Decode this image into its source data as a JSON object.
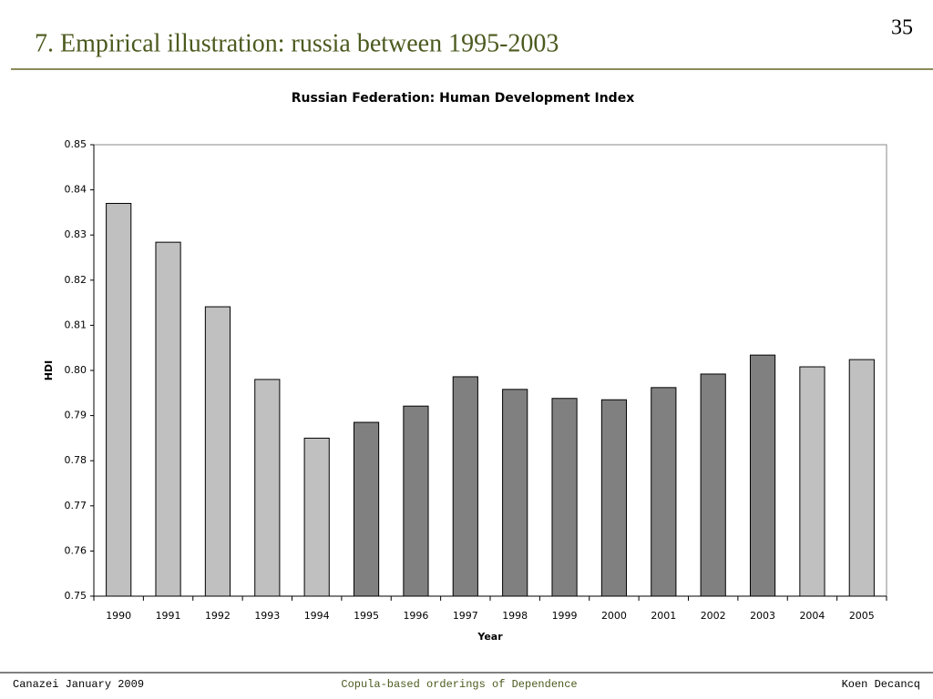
{
  "slide": {
    "title": "7. Empirical illustration: russia between 1995-2003",
    "page_number": "35",
    "footer_left": "Canazei January 2009",
    "footer_center": "Copula-based orderings of Dependence",
    "footer_right": "Koen Decancq"
  },
  "chart_data": {
    "type": "bar",
    "title": "Russian Federation: Human Development Index",
    "x_label": "Year",
    "y_label": "HDI",
    "categories": [
      "1990",
      "1991",
      "1992",
      "1993",
      "1994",
      "1995",
      "1996",
      "1997",
      "1998",
      "1999",
      "2000",
      "2001",
      "2002",
      "2003",
      "2004",
      "2005"
    ],
    "values": [
      0.837,
      0.8284,
      0.8141,
      0.798,
      0.785,
      0.7885,
      0.7921,
      0.7986,
      0.7958,
      0.7938,
      0.7935,
      0.7962,
      0.7992,
      0.8034,
      0.8008,
      0.8024
    ],
    "colors": [
      "#c0c0c0",
      "#c0c0c0",
      "#c0c0c0",
      "#c0c0c0",
      "#c0c0c0",
      "#808080",
      "#808080",
      "#808080",
      "#808080",
      "#808080",
      "#808080",
      "#808080",
      "#808080",
      "#808080",
      "#c0c0c0",
      "#c0c0c0"
    ],
    "ylim": [
      0.75,
      0.85
    ],
    "yticks": [
      0.75,
      0.76,
      0.77,
      0.78,
      0.79,
      {
        "value": 0.8,
        "label": "0.80"
      },
      0.81,
      0.82,
      0.83,
      0.84,
      0.85
    ],
    "grid": false
  }
}
